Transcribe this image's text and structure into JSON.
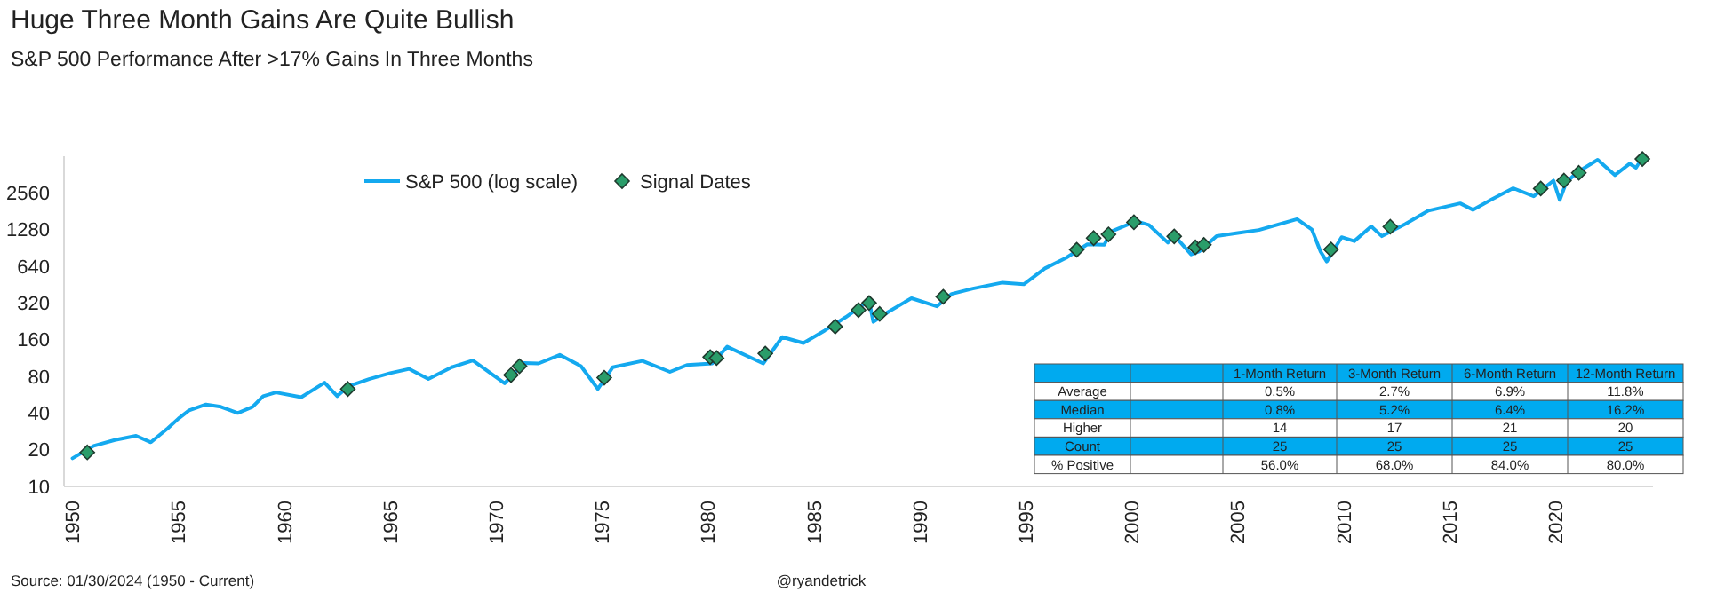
{
  "chart_data": [
    {
      "type": "line",
      "title": "Huge Three Month Gains Are Quite Bullish",
      "subtitle": "S&P 500 Performance After >17% Gains In Three Months",
      "annotations": [
        "Source: 01/30/2024 (1950 - Current)",
        "@ryandetrick"
      ],
      "log": "y",
      "legend": "top",
      "xlim": [
        1949.6,
        2024.6
      ],
      "xticks": [
        1950,
        1955,
        1960,
        1965,
        1970,
        1975,
        1980,
        1985,
        1990,
        1995,
        2000,
        2005,
        2010,
        2015,
        2020
      ],
      "ylim": [
        10,
        5120
      ],
      "yticks": [
        10,
        20,
        40,
        80,
        160,
        320,
        640,
        1280,
        2560
      ],
      "series": [
        {
          "name": "S&P 500 (log scale)",
          "type": "line",
          "color": "#14a9ef",
          "x": [
            1950.0,
            1951.0,
            1952.0,
            1953.0,
            1953.7,
            1954.5,
            1955.0,
            1955.5,
            1956.3,
            1957.0,
            1957.8,
            1958.5,
            1959.0,
            1959.6,
            1960.8,
            1961.9,
            1962.5,
            1963.0,
            1964.0,
            1965.0,
            1965.9,
            1966.8,
            1967.9,
            1968.9,
            1970.4,
            1971.3,
            1972.0,
            1973.0,
            1974.0,
            1974.8,
            1975.5,
            1976.9,
            1978.2,
            1979.0,
            1980.2,
            1980.9,
            1982.6,
            1983.5,
            1984.5,
            1985.5,
            1986.5,
            1987.6,
            1987.8,
            1988.5,
            1989.6,
            1990.8,
            1991.5,
            1992.5,
            1993.9,
            1994.9,
            1995.9,
            1996.9,
            1997.9,
            1998.7,
            1999.0,
            2000.2,
            2000.8,
            2001.7,
            2002.0,
            2002.8,
            2003.2,
            2004.0,
            2005.0,
            2006.0,
            2007.8,
            2008.5,
            2008.9,
            2009.2,
            2009.9,
            2010.5,
            2011.3,
            2011.8,
            2012.9,
            2014.0,
            2015.5,
            2016.1,
            2017.0,
            2018.0,
            2018.97,
            2019.9,
            2020.2,
            2020.5,
            2021.0,
            2021.99,
            2022.8,
            2023.5,
            2023.8,
            2024.08
          ],
          "values": [
            17,
            21.5,
            24,
            26,
            23,
            30,
            36,
            42,
            47,
            45,
            40,
            45,
            55,
            59,
            54,
            71,
            55,
            66,
            76,
            85,
            92,
            76,
            95,
            108,
            70,
            103,
            102,
            120,
            97,
            63,
            95,
            107,
            87,
            99,
            102,
            140,
            102,
            168,
            150,
            190,
            245,
            335,
            224,
            270,
            350,
            300,
            380,
            420,
            470,
            455,
            615,
            750,
            970,
            960,
            1230,
            1500,
            1400,
            1000,
            1150,
            800,
            850,
            1130,
            1200,
            1270,
            1560,
            1280,
            850,
            700,
            1110,
            1030,
            1360,
            1130,
            1420,
            1830,
            2100,
            1860,
            2270,
            2800,
            2400,
            3230,
            2240,
            3100,
            3750,
            4790,
            3580,
            4450,
            4120,
            4930
          ]
        },
        {
          "name": "Signal Dates",
          "type": "scatter",
          "marker": "diamond",
          "color": "#2a9d6a",
          "x": [
            1950.7,
            1963.0,
            1970.7,
            1971.1,
            1975.1,
            1980.1,
            1980.4,
            1982.7,
            1986.0,
            1987.1,
            1987.6,
            1988.1,
            1991.1,
            1997.4,
            1998.2,
            1998.9,
            2000.1,
            2002.0,
            2003.0,
            2003.4,
            2009.4,
            2012.2,
            2019.3,
            2020.4,
            2021.1,
            2024.1
          ],
          "values": [
            19,
            63,
            82,
            97,
            78,
            115,
            113,
            123,
            205,
            280,
            320,
            260,
            360,
            875,
            1090,
            1170,
            1470,
            1125,
            915,
            960,
            880,
            1350,
            2780,
            3230,
            3740,
            4860
          ]
        }
      ]
    },
    {
      "type": "other",
      "categories": [
        "1-Month Return",
        "3-Month Return",
        "6-Month Return",
        "12-Month Return"
      ],
      "y_categories": [
        "Average",
        "Median",
        "Higher",
        "Count",
        "% Positive"
      ],
      "cell_labels": [
        [
          "0.5%",
          "2.7%",
          "6.9%",
          "11.8%"
        ],
        [
          "0.8%",
          "5.2%",
          "6.4%",
          "16.2%"
        ],
        [
          "14",
          "17",
          "21",
          "20"
        ],
        [
          "25",
          "25",
          "25",
          "25"
        ],
        [
          "56.0%",
          "68.0%",
          "84.0%",
          "80.0%"
        ]
      ]
    }
  ]
}
